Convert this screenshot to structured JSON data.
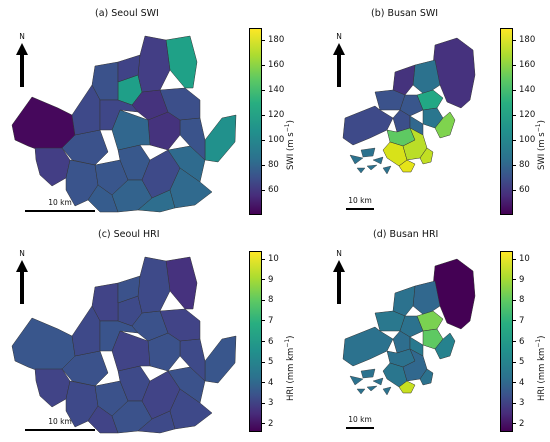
{
  "colors": {
    "viridis": [
      "#440154",
      "#472d7b",
      "#3b528b",
      "#2c728e",
      "#21918c",
      "#28ae80",
      "#5ec962",
      "#addc30",
      "#fde725"
    ]
  },
  "panels": {
    "a": {
      "title": "(a) Seoul SWI",
      "north": "N",
      "scalebar": "10 km",
      "colorbar": {
        "label_main": "SWI (m s",
        "label_sup": "−1",
        "label_end": ")",
        "ticks": [
          "60",
          "80",
          "100",
          "120",
          "140",
          "160",
          "180"
        ],
        "range": [
          40,
          190
        ]
      }
    },
    "b": {
      "title": "(b) Busan SWI",
      "north": "N",
      "scalebar": "10 km",
      "colorbar": {
        "label_main": "SWI (m s",
        "label_sup": "−1",
        "label_end": ")",
        "ticks": [
          "60",
          "80",
          "100",
          "120",
          "140",
          "160",
          "180"
        ],
        "range": [
          40,
          190
        ]
      }
    },
    "c": {
      "title": "(c) Seoul HRI",
      "north": "N",
      "scalebar": "10 km",
      "colorbar": {
        "label_main": "HRI (mm km",
        "label_sup": "−1",
        "label_end": ")",
        "ticks": [
          "2",
          "3",
          "4",
          "5",
          "6",
          "7",
          "8",
          "9",
          "10"
        ],
        "range": [
          1.6,
          10.4
        ]
      }
    },
    "d": {
      "title": "(d) Busan HRI",
      "north": "N",
      "scalebar": "10 km",
      "colorbar": {
        "label_main": "HRI (mm km",
        "label_sup": "−1",
        "label_end": ")",
        "ticks": [
          "2",
          "3",
          "4",
          "5",
          "6",
          "7",
          "8",
          "9",
          "10"
        ],
        "range": [
          1.6,
          10.4
        ]
      }
    }
  }
}
